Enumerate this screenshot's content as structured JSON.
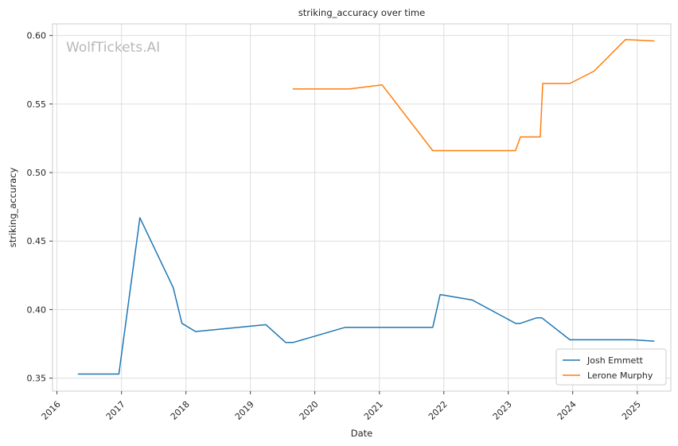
{
  "chart_data": {
    "type": "line",
    "title": "striking_accuracy over time",
    "xlabel": "Date",
    "ylabel": "striking_accuracy",
    "watermark": "WolfTickets.AI",
    "xlim": [
      "2015-12-07",
      "2025-07-10"
    ],
    "ylim": [
      0.3405,
      0.6085
    ],
    "x_ticks": [
      "2016",
      "2017",
      "2018",
      "2019",
      "2020",
      "2021",
      "2022",
      "2023",
      "2024",
      "2025"
    ],
    "y_ticks": [
      0.35,
      0.4,
      0.45,
      0.5,
      0.55,
      0.6
    ],
    "y_tick_labels": [
      "0.35",
      "0.40",
      "0.45",
      "0.50",
      "0.55",
      "0.60"
    ],
    "grid": true,
    "legend_position": "lower-right",
    "series": [
      {
        "name": "Josh Emmett",
        "color": "#1f77b4",
        "points": [
          [
            "2016-05-01",
            0.353
          ],
          [
            "2016-12-17",
            0.353
          ],
          [
            "2017-04-15",
            0.467
          ],
          [
            "2017-10-21",
            0.416
          ],
          [
            "2017-12-09",
            0.39
          ],
          [
            "2018-02-24",
            0.384
          ],
          [
            "2019-03-30",
            0.389
          ],
          [
            "2019-07-20",
            0.376
          ],
          [
            "2019-08-31",
            0.376
          ],
          [
            "2020-06-20",
            0.387
          ],
          [
            "2021-10-30",
            0.387
          ],
          [
            "2021-12-11",
            0.411
          ],
          [
            "2022-06-11",
            0.407
          ],
          [
            "2023-02-11",
            0.39
          ],
          [
            "2023-03-11",
            0.39
          ],
          [
            "2023-06-10",
            0.394
          ],
          [
            "2023-07-10",
            0.394
          ],
          [
            "2023-12-16",
            0.378
          ],
          [
            "2024-12-07",
            0.378
          ],
          [
            "2025-04-05",
            0.377
          ]
        ]
      },
      {
        "name": "Lerone Murphy",
        "color": "#ff7f0e",
        "points": [
          [
            "2019-08-31",
            0.561
          ],
          [
            "2020-07-15",
            0.561
          ],
          [
            "2021-01-16",
            0.564
          ],
          [
            "2021-10-30",
            0.516
          ],
          [
            "2023-02-11",
            0.516
          ],
          [
            "2023-03-11",
            0.526
          ],
          [
            "2023-07-01",
            0.526
          ],
          [
            "2023-07-15",
            0.565
          ],
          [
            "2023-12-16",
            0.565
          ],
          [
            "2024-05-01",
            0.574
          ],
          [
            "2024-10-26",
            0.597
          ],
          [
            "2025-04-05",
            0.596
          ]
        ]
      }
    ]
  }
}
